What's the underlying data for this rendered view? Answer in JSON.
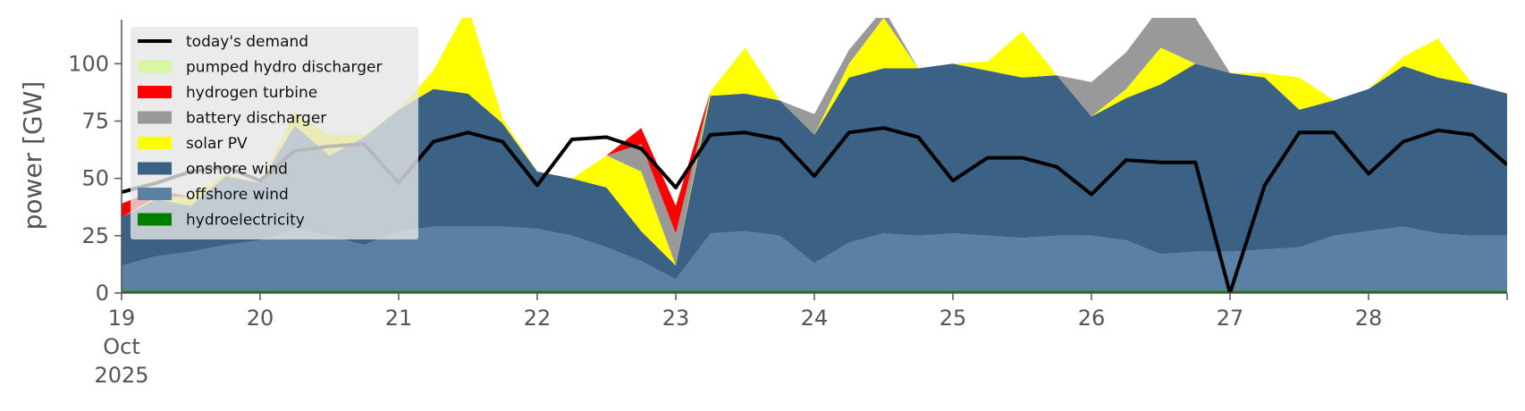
{
  "chart_data": {
    "type": "area",
    "title": "",
    "xlabel": "",
    "ylabel": "power [GW]",
    "ylim": [
      0,
      120
    ],
    "y_ticks": [
      0,
      25,
      50,
      75,
      100
    ],
    "y_tick_labels": [
      "0",
      "25",
      "50",
      "75",
      "100"
    ],
    "x_range_days": [
      "2025-10-19",
      "2025-10-29"
    ],
    "x_ticks": [
      {
        "date": "2025-10-19",
        "label": [
          "19",
          "Oct",
          "2025"
        ]
      },
      {
        "date": "2025-10-20",
        "label": [
          "20"
        ]
      },
      {
        "date": "2025-10-21",
        "label": [
          "21"
        ]
      },
      {
        "date": "2025-10-22",
        "label": [
          "22"
        ]
      },
      {
        "date": "2025-10-23",
        "label": [
          "23"
        ]
      },
      {
        "date": "2025-10-24",
        "label": [
          "24"
        ]
      },
      {
        "date": "2025-10-25",
        "label": [
          "25"
        ]
      },
      {
        "date": "2025-10-26",
        "label": [
          "26"
        ]
      },
      {
        "date": "2025-10-27",
        "label": [
          "27"
        ]
      },
      {
        "date": "2025-10-28",
        "label": [
          "28"
        ]
      }
    ],
    "grid": false,
    "legend_position": "top-left",
    "x": [
      "2025-10-19 00:00",
      "2025-10-19 06:00",
      "2025-10-19 12:00",
      "2025-10-19 18:00",
      "2025-10-20 00:00",
      "2025-10-20 06:00",
      "2025-10-20 12:00",
      "2025-10-20 18:00",
      "2025-10-21 00:00",
      "2025-10-21 06:00",
      "2025-10-21 12:00",
      "2025-10-21 18:00",
      "2025-10-22 00:00",
      "2025-10-22 06:00",
      "2025-10-22 12:00",
      "2025-10-22 18:00",
      "2025-10-23 00:00",
      "2025-10-23 06:00",
      "2025-10-23 12:00",
      "2025-10-23 18:00",
      "2025-10-24 00:00",
      "2025-10-24 06:00",
      "2025-10-24 12:00",
      "2025-10-24 18:00",
      "2025-10-25 00:00",
      "2025-10-25 06:00",
      "2025-10-25 12:00",
      "2025-10-25 18:00",
      "2025-10-26 00:00",
      "2025-10-26 06:00",
      "2025-10-26 12:00",
      "2025-10-26 18:00",
      "2025-10-27 00:00",
      "2025-10-27 06:00",
      "2025-10-27 12:00",
      "2025-10-27 18:00",
      "2025-10-28 00:00",
      "2025-10-28 06:00",
      "2025-10-28 12:00",
      "2025-10-28 18:00",
      "2025-10-29 00:00"
    ],
    "series": [
      {
        "name": "hydroelectricity",
        "color": "#008000",
        "values": [
          1,
          1,
          1,
          1,
          1,
          1,
          1,
          1,
          1,
          1,
          1,
          1,
          1,
          1,
          1,
          1,
          1,
          1,
          1,
          1,
          1,
          1,
          1,
          1,
          1,
          1,
          1,
          1,
          1,
          1,
          1,
          1,
          1,
          1,
          1,
          1,
          1,
          1,
          1,
          1,
          1
        ]
      },
      {
        "name": "offshore wind",
        "color": "#5b80a3",
        "values": [
          11,
          15,
          17,
          20,
          22,
          27,
          24,
          20,
          26,
          28,
          28,
          28,
          27,
          24,
          19,
          13,
          5,
          25,
          26,
          24,
          12,
          21,
          25,
          24,
          25,
          24,
          23,
          24,
          24,
          22,
          16,
          17,
          17,
          18,
          19,
          24,
          26,
          28,
          25,
          24,
          24
        ]
      },
      {
        "name": "onshore wind",
        "color": "#3b6184",
        "values": [
          21,
          25,
          20,
          30,
          25,
          45,
          35,
          47,
          53,
          60,
          58,
          45,
          25,
          25,
          26,
          13,
          6,
          60,
          60,
          59,
          56,
          72,
          72,
          73,
          74,
          72,
          70,
          70,
          52,
          62,
          74,
          82,
          78,
          75,
          60,
          59,
          62,
          70,
          68,
          66,
          62
        ]
      },
      {
        "name": "solar PV",
        "color": "#ffff00",
        "values": [
          0,
          1,
          4,
          1,
          0,
          6,
          9,
          1,
          0,
          8,
          38,
          2,
          0,
          0,
          14,
          26,
          0,
          2,
          20,
          0,
          0,
          6,
          22,
          0,
          0,
          4,
          20,
          0,
          0,
          4,
          16,
          0,
          0,
          2,
          14,
          0,
          0,
          4,
          17,
          0,
          0
        ]
      },
      {
        "name": "battery discharger",
        "color": "#999999",
        "values": [
          0,
          0,
          0,
          0,
          0,
          0,
          0,
          0,
          0,
          0,
          0,
          0,
          0,
          0,
          0,
          12,
          14,
          0,
          0,
          0,
          9,
          6,
          4,
          0,
          0,
          0,
          0,
          0,
          15,
          16,
          18,
          20,
          0,
          0,
          0,
          0,
          0,
          0,
          0,
          0,
          0
        ]
      },
      {
        "name": "hydrogen turbine",
        "color": "#ff0000",
        "values": [
          6,
          3,
          0,
          0,
          0,
          0,
          0,
          0,
          0,
          0,
          0,
          0,
          0,
          0,
          0,
          7,
          12,
          0,
          0,
          0,
          0,
          0,
          0,
          0,
          0,
          0,
          0,
          0,
          0,
          0,
          0,
          0,
          0,
          0,
          0,
          0,
          0,
          0,
          0,
          0,
          0
        ]
      },
      {
        "name": "pumped hydro discharger",
        "color": "#d9f6a3",
        "values": [
          0,
          0,
          0,
          0,
          0,
          0,
          0,
          0,
          0,
          0,
          0,
          0,
          0,
          0,
          0,
          0,
          0,
          0,
          0,
          0,
          0,
          0,
          0,
          0,
          0,
          0,
          0,
          0,
          0,
          0,
          0,
          0,
          0,
          0,
          0,
          0,
          0,
          0,
          0,
          0,
          0
        ]
      },
      {
        "name": "today's demand",
        "color": "#000000",
        "type": "line",
        "values": [
          44,
          48,
          53,
          55,
          49,
          62,
          64,
          65,
          48,
          66,
          70,
          66,
          47,
          67,
          68,
          63,
          46,
          69,
          70,
          67,
          51,
          70,
          72,
          68,
          49,
          59,
          59,
          55,
          43,
          58,
          57,
          57,
          0,
          47,
          70,
          70,
          52,
          66,
          71,
          69,
          56
        ]
      }
    ]
  }
}
